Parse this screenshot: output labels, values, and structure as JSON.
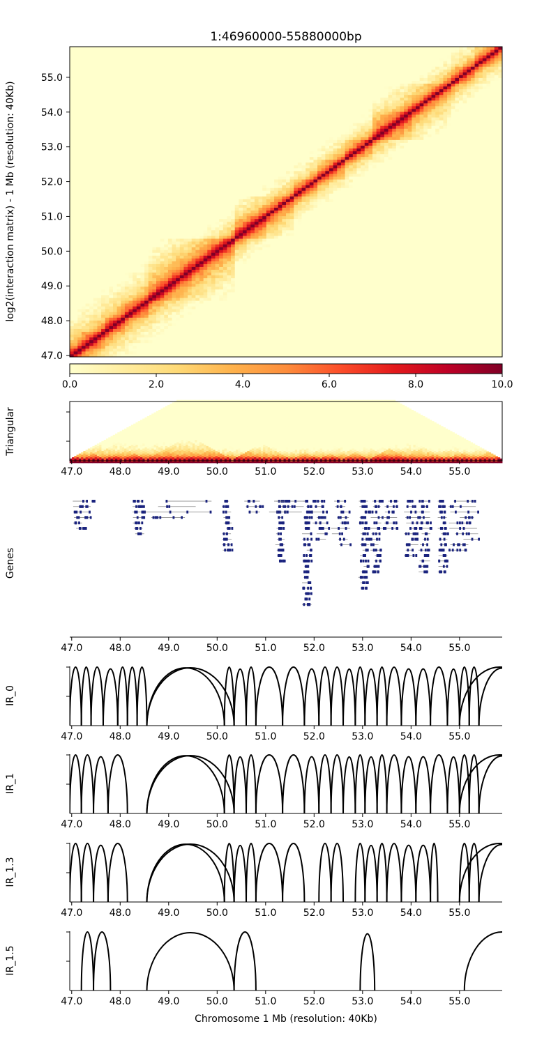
{
  "figure": {
    "title": "1:46960000-55880000bp",
    "xlabel": "Chromosome 1 Mb (resolution: 40Kb)"
  },
  "colors": {
    "colormap": [
      "#ffffcc",
      "#ffeda0",
      "#fed976",
      "#feb24c",
      "#fd8d3c",
      "#fc4e2a",
      "#e31a1c",
      "#bd0026",
      "#800026"
    ],
    "gene": "#1a237e",
    "arc": "#000000",
    "axis": "#000000"
  },
  "chart_data": [
    {
      "id": "heatmap",
      "type": "heatmap",
      "title": "1:46960000-55880000bp",
      "ylabel": "log2(interaction matrix) - 1 Mb (resolution: 40Kb)",
      "xlim": [
        46.96,
        55.88
      ],
      "ylim": [
        46.96,
        55.88
      ],
      "y_ticks": [
        "47.0",
        "48.0",
        "49.0",
        "50.0",
        "51.0",
        "52.0",
        "53.0",
        "54.0",
        "55.0"
      ],
      "colorbar": {
        "range": [
          0,
          10
        ],
        "ticks": [
          "0.0",
          "2.0",
          "4.0",
          "6.0",
          "8.0",
          "10.0"
        ]
      },
      "domains_mb": [
        [
          46.96,
          47.2
        ],
        [
          47.2,
          47.7
        ],
        [
          47.7,
          48.1
        ],
        [
          48.1,
          48.55
        ],
        [
          48.55,
          50.35
        ],
        [
          46.96,
          50.35
        ],
        [
          50.35,
          51.0
        ],
        [
          50.35,
          51.6
        ],
        [
          51.6,
          52.1
        ],
        [
          52.1,
          52.6
        ],
        [
          52.6,
          53.2
        ],
        [
          53.2,
          54.0
        ],
        [
          53.2,
          54.8
        ],
        [
          54.8,
          55.3
        ],
        [
          55.3,
          55.88
        ]
      ]
    },
    {
      "id": "triangular",
      "type": "heatmap",
      "ylabel": "Triangular",
      "xlim": [
        46.96,
        55.88
      ],
      "x_ticks": [
        "47.0",
        "48.0",
        "49.0",
        "50.0",
        "51.0",
        "52.0",
        "53.0",
        "54.0",
        "55.0"
      ]
    },
    {
      "id": "genes",
      "type": "table",
      "ylabel": "Genes",
      "xlim": [
        46.96,
        55.88
      ],
      "x_ticks": [
        "47.0",
        "48.0",
        "49.0",
        "50.0",
        "51.0",
        "52.0",
        "53.0",
        "54.0",
        "55.0"
      ],
      "gene_clusters": [
        {
          "start": 47.02,
          "end": 47.4,
          "rows": 6
        },
        {
          "start": 47.4,
          "end": 47.45,
          "rows": 1
        },
        {
          "start": 48.25,
          "end": 48.5,
          "rows": 7
        },
        {
          "start": 48.5,
          "end": 49.9,
          "rows": 4
        },
        {
          "start": 50.1,
          "end": 50.3,
          "rows": 10
        },
        {
          "start": 50.45,
          "end": 51.0,
          "rows": 3
        },
        {
          "start": 51.2,
          "end": 51.4,
          "rows": 12
        },
        {
          "start": 51.05,
          "end": 51.9,
          "rows": 3
        },
        {
          "start": 51.75,
          "end": 51.95,
          "rows": 20
        },
        {
          "start": 51.95,
          "end": 52.3,
          "rows": 8
        },
        {
          "start": 52.35,
          "end": 52.75,
          "rows": 9
        },
        {
          "start": 52.9,
          "end": 53.15,
          "rows": 17
        },
        {
          "start": 53.15,
          "end": 53.4,
          "rows": 14
        },
        {
          "start": 53.4,
          "end": 53.75,
          "rows": 6
        },
        {
          "start": 53.85,
          "end": 54.15,
          "rows": 11
        },
        {
          "start": 54.15,
          "end": 54.4,
          "rows": 14
        },
        {
          "start": 54.55,
          "end": 54.75,
          "rows": 14
        },
        {
          "start": 54.75,
          "end": 55.4,
          "rows": 10
        }
      ]
    },
    {
      "id": "IR_0",
      "type": "line",
      "ylabel": "IR_0",
      "xlim": [
        46.96,
        55.88
      ],
      "x_ticks": [
        "47.0",
        "48.0",
        "49.0",
        "50.0",
        "51.0",
        "52.0",
        "53.0",
        "54.0",
        "55.0"
      ],
      "arcs": [
        [
          46.96,
          47.2
        ],
        [
          47.2,
          47.4
        ],
        [
          47.4,
          47.65
        ],
        [
          47.65,
          47.95
        ],
        [
          47.95,
          48.15
        ],
        [
          48.15,
          48.35
        ],
        [
          48.35,
          48.55
        ],
        [
          48.55,
          50.15
        ],
        [
          48.55,
          50.35
        ],
        [
          50.15,
          50.35
        ],
        [
          50.35,
          50.6
        ],
        [
          50.6,
          50.8
        ],
        [
          50.8,
          51.35
        ],
        [
          51.35,
          51.8
        ],
        [
          51.8,
          52.1
        ],
        [
          52.1,
          52.35
        ],
        [
          52.35,
          52.6
        ],
        [
          52.6,
          52.85
        ],
        [
          52.85,
          53.05
        ],
        [
          53.05,
          53.3
        ],
        [
          53.3,
          53.5
        ],
        [
          53.5,
          53.8
        ],
        [
          53.8,
          54.1
        ],
        [
          54.1,
          54.4
        ],
        [
          54.4,
          54.75
        ],
        [
          54.75,
          55.0
        ],
        [
          55.0,
          55.2
        ],
        [
          55.2,
          55.4
        ],
        [
          55.0,
          56.65
        ],
        [
          55.4,
          56.35
        ]
      ]
    },
    {
      "id": "IR_1",
      "type": "line",
      "ylabel": "IR_1",
      "xlim": [
        46.96,
        55.88
      ],
      "x_ticks": [
        "47.0",
        "48.0",
        "49.0",
        "50.0",
        "51.0",
        "52.0",
        "53.0",
        "54.0",
        "55.0"
      ],
      "arcs": [
        [
          46.96,
          47.2
        ],
        [
          47.2,
          47.45
        ],
        [
          47.45,
          47.75
        ],
        [
          47.75,
          48.15
        ],
        [
          48.55,
          50.15
        ],
        [
          48.55,
          50.35
        ],
        [
          50.15,
          50.35
        ],
        [
          50.35,
          50.6
        ],
        [
          50.6,
          50.8
        ],
        [
          50.8,
          51.35
        ],
        [
          51.35,
          51.8
        ],
        [
          51.8,
          52.1
        ],
        [
          52.1,
          52.35
        ],
        [
          52.35,
          52.6
        ],
        [
          52.6,
          52.85
        ],
        [
          52.85,
          53.05
        ],
        [
          53.05,
          53.3
        ],
        [
          53.3,
          53.5
        ],
        [
          53.5,
          53.8
        ],
        [
          53.8,
          54.1
        ],
        [
          54.1,
          54.4
        ],
        [
          54.4,
          54.75
        ],
        [
          54.75,
          55.0
        ],
        [
          55.0,
          55.2
        ],
        [
          55.2,
          55.4
        ],
        [
          55.0,
          56.65
        ],
        [
          55.4,
          56.35
        ]
      ]
    },
    {
      "id": "IR_1.3",
      "type": "line",
      "ylabel": "IR_1.3",
      "xlim": [
        46.96,
        55.88
      ],
      "x_ticks": [
        "47.0",
        "48.0",
        "49.0",
        "50.0",
        "51.0",
        "52.0",
        "53.0",
        "54.0",
        "55.0"
      ],
      "arcs": [
        [
          46.96,
          47.2
        ],
        [
          47.2,
          47.45
        ],
        [
          47.45,
          47.75
        ],
        [
          47.75,
          48.15
        ],
        [
          48.55,
          50.15
        ],
        [
          48.55,
          50.35
        ],
        [
          50.15,
          50.35
        ],
        [
          50.35,
          50.6
        ],
        [
          50.6,
          50.8
        ],
        [
          50.8,
          51.35
        ],
        [
          51.35,
          51.8
        ],
        [
          52.1,
          52.35
        ],
        [
          52.35,
          52.6
        ],
        [
          52.85,
          53.05
        ],
        [
          53.05,
          53.3
        ],
        [
          53.3,
          53.5
        ],
        [
          53.5,
          53.8
        ],
        [
          53.8,
          54.1
        ],
        [
          54.1,
          54.4
        ],
        [
          54.4,
          54.55
        ],
        [
          55.0,
          55.2
        ],
        [
          55.2,
          55.4
        ],
        [
          55.0,
          56.65
        ],
        [
          55.4,
          56.35
        ]
      ]
    },
    {
      "id": "IR_1.5",
      "type": "line",
      "ylabel": "IR_1.5",
      "xlim": [
        46.96,
        55.88
      ],
      "x_ticks": [
        "47.0",
        "48.0",
        "49.0",
        "50.0",
        "51.0",
        "52.0",
        "53.0",
        "54.0",
        "55.0"
      ],
      "arcs": [
        [
          47.2,
          47.45
        ],
        [
          47.45,
          47.8
        ],
        [
          48.55,
          50.35
        ],
        [
          50.35,
          50.8
        ],
        [
          52.95,
          53.25
        ],
        [
          55.1,
          56.65
        ]
      ]
    }
  ]
}
